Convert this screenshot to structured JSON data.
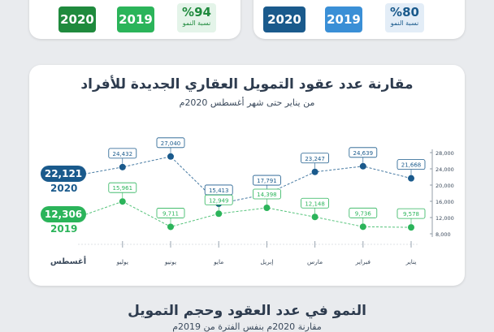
{
  "summary_left": {
    "year_2020": "2020",
    "year_2019": "2019",
    "growth_value": "%94",
    "growth_label": "نسبة النمو",
    "color_2020": "#1f8a3d",
    "color_2019": "#2bb45a"
  },
  "summary_right": {
    "year_2020": "2020",
    "year_2019": "2019",
    "growth_value": "%80",
    "growth_label": "نسبة النمو",
    "color_2020": "#1a5a8c",
    "color_2019": "#3a8fd6"
  },
  "legend": {
    "total_2020": "22,121",
    "label_2020": "2020",
    "total_2019": "12,306",
    "label_2019": "2019"
  },
  "bottom": {
    "title": "النمو في عدد العقود وحجم التمويل",
    "subtitle": "مقارنة 2020م بنفس الفترة من 2019م"
  },
  "chart_data": {
    "type": "line",
    "title": "مقارنة عدد عقود التمويل العقاري الجديدة للأفراد",
    "subtitle": "من يناير حتى شهر أغسطس 2020م",
    "categories": [
      "يناير",
      "فبراير",
      "مارس",
      "إبريل",
      "مايو",
      "يونيو",
      "يوليو",
      "أغسطس"
    ],
    "series": [
      {
        "name": "2020",
        "color": "#1a5a8c",
        "values": [
          21668,
          24639,
          23247,
          17791,
          15413,
          27040,
          24432,
          22121
        ]
      },
      {
        "name": "2019",
        "color": "#2bb45a",
        "values": [
          9578,
          9736,
          12148,
          14398,
          12949,
          9711,
          15961,
          12306
        ]
      }
    ],
    "y_ticks": [
      "28,000",
      "24,000",
      "20,000",
      "16,000",
      "12,000",
      "8,000"
    ],
    "ylim": [
      8000,
      28000
    ]
  }
}
